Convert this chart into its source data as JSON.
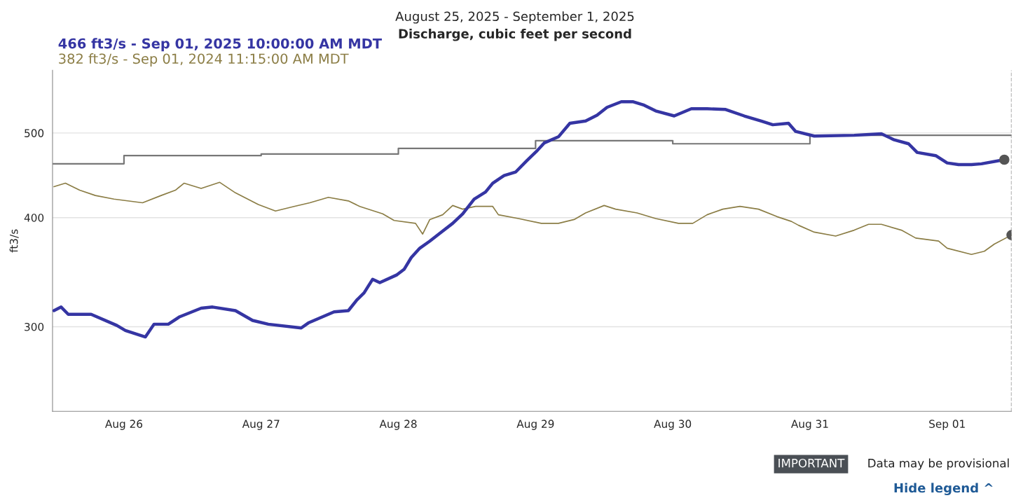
{
  "chart_data": {
    "type": "line",
    "title": "August 25, 2025 - September 1, 2025",
    "subtitle": "Discharge, cubic feet per second",
    "ylabel": "ft3/s",
    "log": "y",
    "ylim": [
      240,
      590
    ],
    "yticks": [
      300,
      400,
      500
    ],
    "xlim": [
      "2025-08-25T11:30",
      "2025-09-01T11:15"
    ],
    "xticks": [
      {
        "value": "2025-08-26",
        "label": "Aug 26"
      },
      {
        "value": "2025-08-27",
        "label": "Aug 27"
      },
      {
        "value": "2025-08-28",
        "label": "Aug 28"
      },
      {
        "value": "2025-08-29",
        "label": "Aug 29"
      },
      {
        "value": "2025-08-30",
        "label": "Aug 30"
      },
      {
        "value": "2025-08-31",
        "label": "Aug 31"
      },
      {
        "value": "2025-09-01",
        "label": "Sep 01"
      }
    ],
    "grid": "y",
    "legend": "top left",
    "marker": "none",
    "line_style": "solid",
    "series": [
      {
        "type": "step",
        "color": "#777777",
        "x": [
          "2025-08-25T11:30",
          "2025-08-26",
          "2025-08-27",
          "2025-08-28",
          "2025-08-29",
          "2025-08-30",
          "2025-08-31",
          "2025-09-01",
          "2025-09-01T11:15"
        ],
        "values": [
          461,
          471,
          473,
          480,
          490,
          486,
          497,
          497,
          497
        ]
      },
      {
        "name": "382 ft3/s - Sep 01, 2024 11:15:00 AM MDT",
        "color": "#8b7d45",
        "x": [
          "2025-08-25T11:45",
          "2025-08-25T13:45",
          "2025-08-25T16:15",
          "2025-08-25T19:00",
          "2025-08-25T22:15",
          "2025-08-26T03:15",
          "2025-08-26T06:30",
          "2025-08-26T09:00",
          "2025-08-26T10:30",
          "2025-08-26T13:30",
          "2025-08-26T16:45",
          "2025-08-26T19:30",
          "2025-08-26T23:30",
          "2025-08-27T02:30",
          "2025-08-27T05:45",
          "2025-08-27T08:30",
          "2025-08-27T11:45",
          "2025-08-27T15:15",
          "2025-08-27T17:15",
          "2025-08-27T21:15",
          "2025-08-27T23:15",
          "2025-08-28T03:00",
          "2025-08-28T04:15",
          "2025-08-28T05:30",
          "2025-08-28T07:45",
          "2025-08-28T09:30",
          "2025-08-28T11:15",
          "2025-08-28T13:30",
          "2025-08-28T16:30",
          "2025-08-28T17:30",
          "2025-08-28T21:00",
          "2025-08-29T01:00",
          "2025-08-29T04:00",
          "2025-08-29T06:45",
          "2025-08-29T08:45",
          "2025-08-29T12:00",
          "2025-08-29T14:00",
          "2025-08-29T17:45",
          "2025-08-29T21:00",
          "2025-08-30T01:00",
          "2025-08-30T03:30",
          "2025-08-30T06:00",
          "2025-08-30T08:45",
          "2025-08-30T11:45",
          "2025-08-30T15:00",
          "2025-08-30T18:15",
          "2025-08-30T20:45",
          "2025-08-30T22:00",
          "2025-08-31T00:45",
          "2025-08-31T04:30",
          "2025-08-31T07:45",
          "2025-08-31T10:15",
          "2025-08-31T12:30",
          "2025-08-31T16:00",
          "2025-08-31T18:30",
          "2025-08-31T22:30",
          "2025-09-01T00:00",
          "2025-09-01T04:15",
          "2025-09-01T06:30",
          "2025-09-01T08:15",
          "2025-09-01T11:15"
        ],
        "values": [
          434,
          438,
          430,
          424,
          420,
          416,
          424,
          430,
          438,
          432,
          439,
          427,
          414,
          407,
          412,
          416,
          422,
          418,
          412,
          404,
          397,
          394,
          383,
          398,
          403,
          413,
          409,
          412,
          412,
          403,
          399,
          394,
          394,
          398,
          405,
          413,
          409,
          405,
          399,
          394,
          394,
          403,
          409,
          412,
          409,
          401,
          396,
          392,
          385,
          381,
          387,
          393,
          393,
          387,
          379,
          376,
          369,
          363,
          366,
          373,
          382
        ]
      },
      {
        "name": "466 ft3/s - Sep 01, 2025 10:00:00 AM MDT",
        "color": "#3535a3",
        "x": [
          "2025-08-25T11:45",
          "2025-08-25T13:00",
          "2025-08-25T14:15",
          "2025-08-25T18:15",
          "2025-08-25T22:45",
          "2025-08-26T00:15",
          "2025-08-26T03:45",
          "2025-08-26T05:15",
          "2025-08-26T07:45",
          "2025-08-26T09:45",
          "2025-08-26T13:30",
          "2025-08-26T15:30",
          "2025-08-26T19:30",
          "2025-08-26T22:30",
          "2025-08-27T01:15",
          "2025-08-27T07:00",
          "2025-08-27T08:15",
          "2025-08-27T09:45",
          "2025-08-27T12:45",
          "2025-08-27T15:15",
          "2025-08-27T16:45",
          "2025-08-27T18:00",
          "2025-08-27T19:30",
          "2025-08-27T20:45",
          "2025-08-27T23:45",
          "2025-08-28T01:00",
          "2025-08-28T02:15",
          "2025-08-28T03:45",
          "2025-08-28T05:30",
          "2025-08-28T07:30",
          "2025-08-28T09:30",
          "2025-08-28T11:15",
          "2025-08-28T13:15",
          "2025-08-28T15:15",
          "2025-08-28T16:30",
          "2025-08-28T18:30",
          "2025-08-28T20:30",
          "2025-08-28T22:30",
          "2025-08-29T00:15",
          "2025-08-29T01:30",
          "2025-08-29T04:00",
          "2025-08-29T06:00",
          "2025-08-29T08:45",
          "2025-08-29T10:45",
          "2025-08-29T12:30",
          "2025-08-29T15:00",
          "2025-08-29T17:00",
          "2025-08-29T19:00",
          "2025-08-29T21:00",
          "2025-08-30T00:15",
          "2025-08-30T03:15",
          "2025-08-30T06:00",
          "2025-08-30T09:15",
          "2025-08-30T12:30",
          "2025-08-30T15:30",
          "2025-08-30T17:30",
          "2025-08-30T20:15",
          "2025-08-30T21:30",
          "2025-08-31T00:45",
          "2025-08-31T07:45",
          "2025-08-31T12:30",
          "2025-08-31T14:45",
          "2025-08-31T17:15",
          "2025-08-31T18:45",
          "2025-08-31T22:00",
          "2025-09-01T00:00",
          "2025-09-01T02:00",
          "2025-09-01T04:15",
          "2025-09-01T06:00",
          "2025-09-01T10:00"
        ],
        "values": [
          313,
          316,
          310,
          310,
          301,
          297,
          292,
          302,
          302,
          308,
          315,
          316,
          313,
          305,
          302,
          299,
          303,
          306,
          312,
          313,
          322,
          328,
          340,
          337,
          344,
          349,
          360,
          369,
          376,
          385,
          394,
          404,
          420,
          428,
          438,
          447,
          451,
          465,
          477,
          487,
          495,
          513,
          516,
          524,
          535,
          543,
          543,
          538,
          530,
          523,
          533,
          533,
          532,
          523,
          516,
          511,
          513,
          502,
          496,
          497,
          499,
          491,
          486,
          475,
          471,
          462,
          460,
          460,
          461,
          466
        ]
      },
      {
        "type": "scatter",
        "color": "#555555",
        "marker": "circle",
        "x": [
          "2025-09-01T10:00",
          "2025-09-01T11:15"
        ],
        "values": [
          466,
          382
        ]
      }
    ],
    "ref_lines": [
      {
        "axis": "x",
        "value": "2025-09-01T11:15",
        "color": "#888888",
        "line_style": "dashed"
      }
    ],
    "annotations": [
      "IMPORTANT",
      "Data may be provisional",
      "Hide legend ^"
    ]
  }
}
